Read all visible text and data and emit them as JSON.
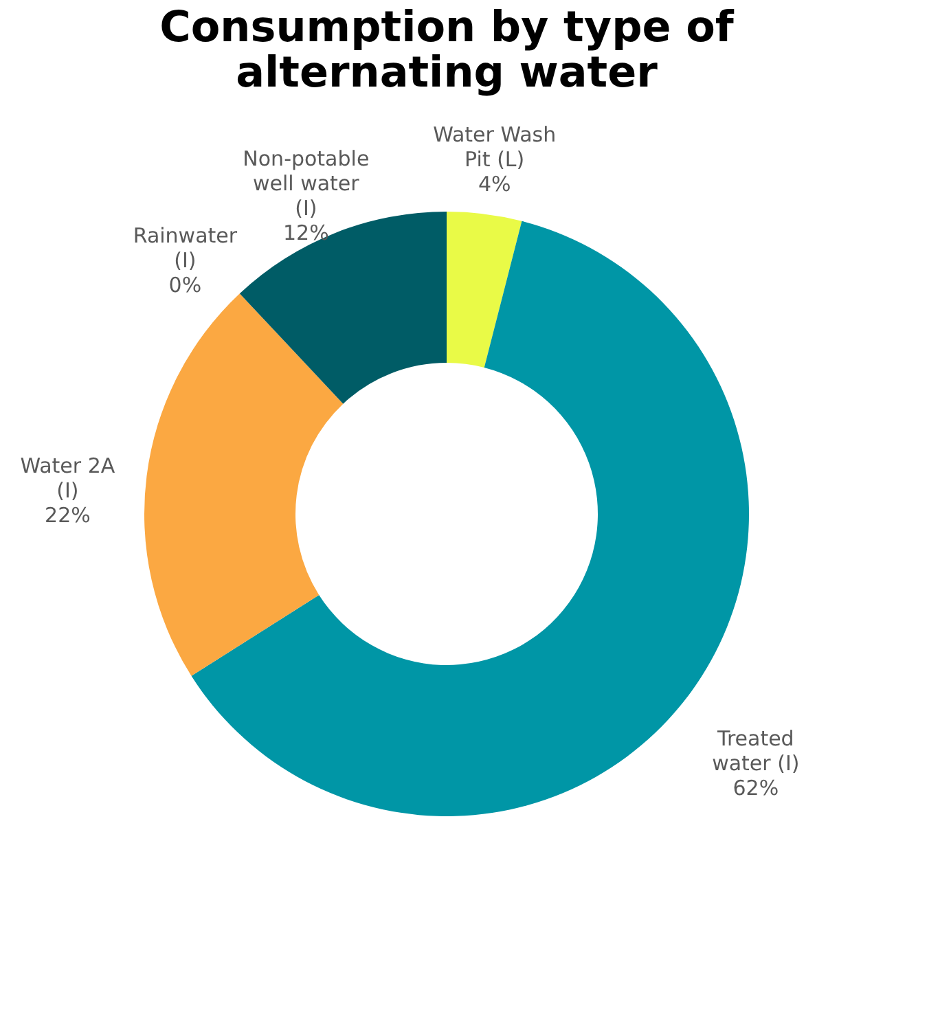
{
  "chart_data": {
    "type": "donut",
    "title": "Consumption by type of alternating water",
    "categories": [
      "Water Wash Pit (L)",
      "Treated water (I)",
      "Water 2A (I)",
      "Rainwater (I)",
      "Non-potable well water (I)"
    ],
    "values": [
      4,
      62,
      22,
      0,
      12
    ],
    "value_labels": [
      "4%",
      "62%",
      "22%",
      "0%",
      "12%"
    ],
    "colors": [
      "#e9fa47",
      "#0096a6",
      "#fba842",
      "#9bb01a",
      "#005c66"
    ],
    "legend": false
  }
}
